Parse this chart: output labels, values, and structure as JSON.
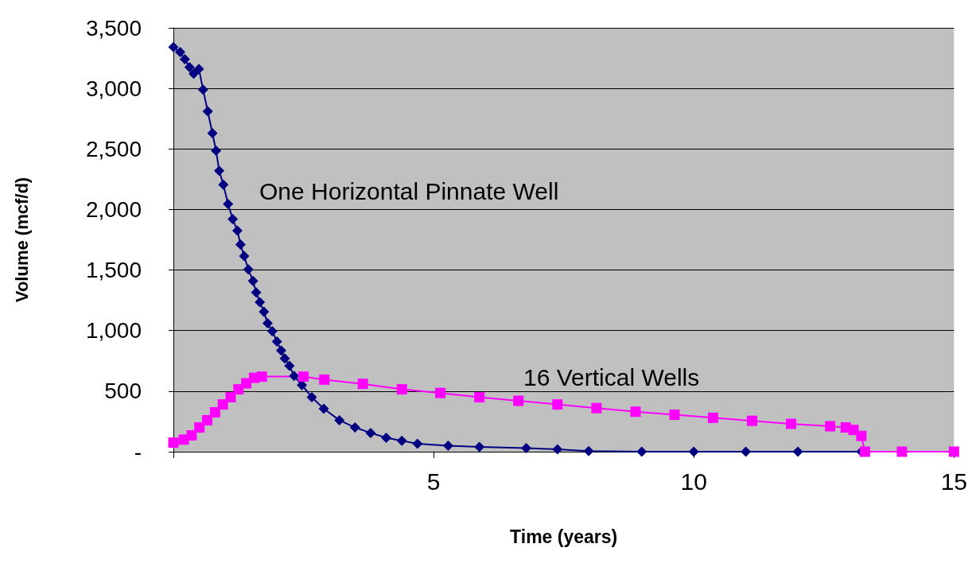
{
  "chart_data": {
    "type": "line",
    "xlabel": "Time (years)",
    "ylabel": "Volume (mcf/d)",
    "xlim": [
      0,
      15
    ],
    "xticks": [
      {
        "value": 0,
        "label": null
      },
      5,
      10,
      15
    ],
    "ylim": [
      0,
      3500
    ],
    "yticks": [
      {
        "value": 0,
        "label": "-"
      },
      {
        "value": 500,
        "label": "500"
      },
      {
        "value": 1000,
        "label": "1,000"
      },
      {
        "value": 1500,
        "label": "1,500"
      },
      {
        "value": 2000,
        "label": "2,000"
      },
      {
        "value": 2500,
        "label": "2,500"
      },
      {
        "value": 3000,
        "label": "3,000"
      },
      {
        "value": 3500,
        "label": "3,500"
      }
    ],
    "grid": "y",
    "legend": false,
    "line_style": "solid",
    "series": [
      {
        "name": "One Horizontal Pinnate Well",
        "color": "#000080",
        "marker": "diamond",
        "x": [
          0,
          0.13,
          0.22,
          0.31,
          0.39,
          0.49,
          0.57,
          0.66,
          0.75,
          0.82,
          0.88,
          0.96,
          1.05,
          1.14,
          1.23,
          1.29,
          1.36,
          1.44,
          1.53,
          1.59,
          1.66,
          1.74,
          1.81,
          1.9,
          1.99,
          2.07,
          2.14,
          2.23,
          2.32,
          2.47,
          2.66,
          2.89,
          3.19,
          3.49,
          3.79,
          4.09,
          4.39,
          4.69,
          5.28,
          5.88,
          6.78,
          7.38,
          7.98,
          9,
          10,
          11,
          12,
          13.22
        ],
        "values": [
          3340,
          3300,
          3240,
          3175,
          3120,
          3160,
          2990,
          2810,
          2630,
          2485,
          2320,
          2205,
          2045,
          1920,
          1825,
          1710,
          1615,
          1505,
          1410,
          1315,
          1235,
          1155,
          1060,
          995,
          910,
          835,
          770,
          710,
          625,
          550,
          450,
          355,
          260,
          200,
          155,
          115,
          90,
          65,
          50,
          40,
          30,
          20,
          5,
          0,
          0,
          0,
          0,
          0
        ]
      },
      {
        "name": "16 Vertical Wells",
        "color": "#ff00ff",
        "marker": "square",
        "x": [
          0,
          0.2,
          0.35,
          0.5,
          0.65,
          0.8,
          0.95,
          1.1,
          1.25,
          1.4,
          1.55,
          1.7,
          2.5,
          2.9,
          3.64,
          4.39,
          5.13,
          5.88,
          6.63,
          7.38,
          8.13,
          8.88,
          9.63,
          10.37,
          11.12,
          11.87,
          12.62,
          12.92,
          13.07,
          13.22,
          13.29,
          14,
          15
        ],
        "values": [
          75,
          100,
          135,
          200,
          260,
          325,
          390,
          450,
          515,
          565,
          610,
          620,
          620,
          595,
          560,
          515,
          485,
          450,
          420,
          390,
          360,
          330,
          305,
          280,
          255,
          230,
          210,
          200,
          180,
          130,
          0,
          0,
          0
        ]
      }
    ]
  }
}
